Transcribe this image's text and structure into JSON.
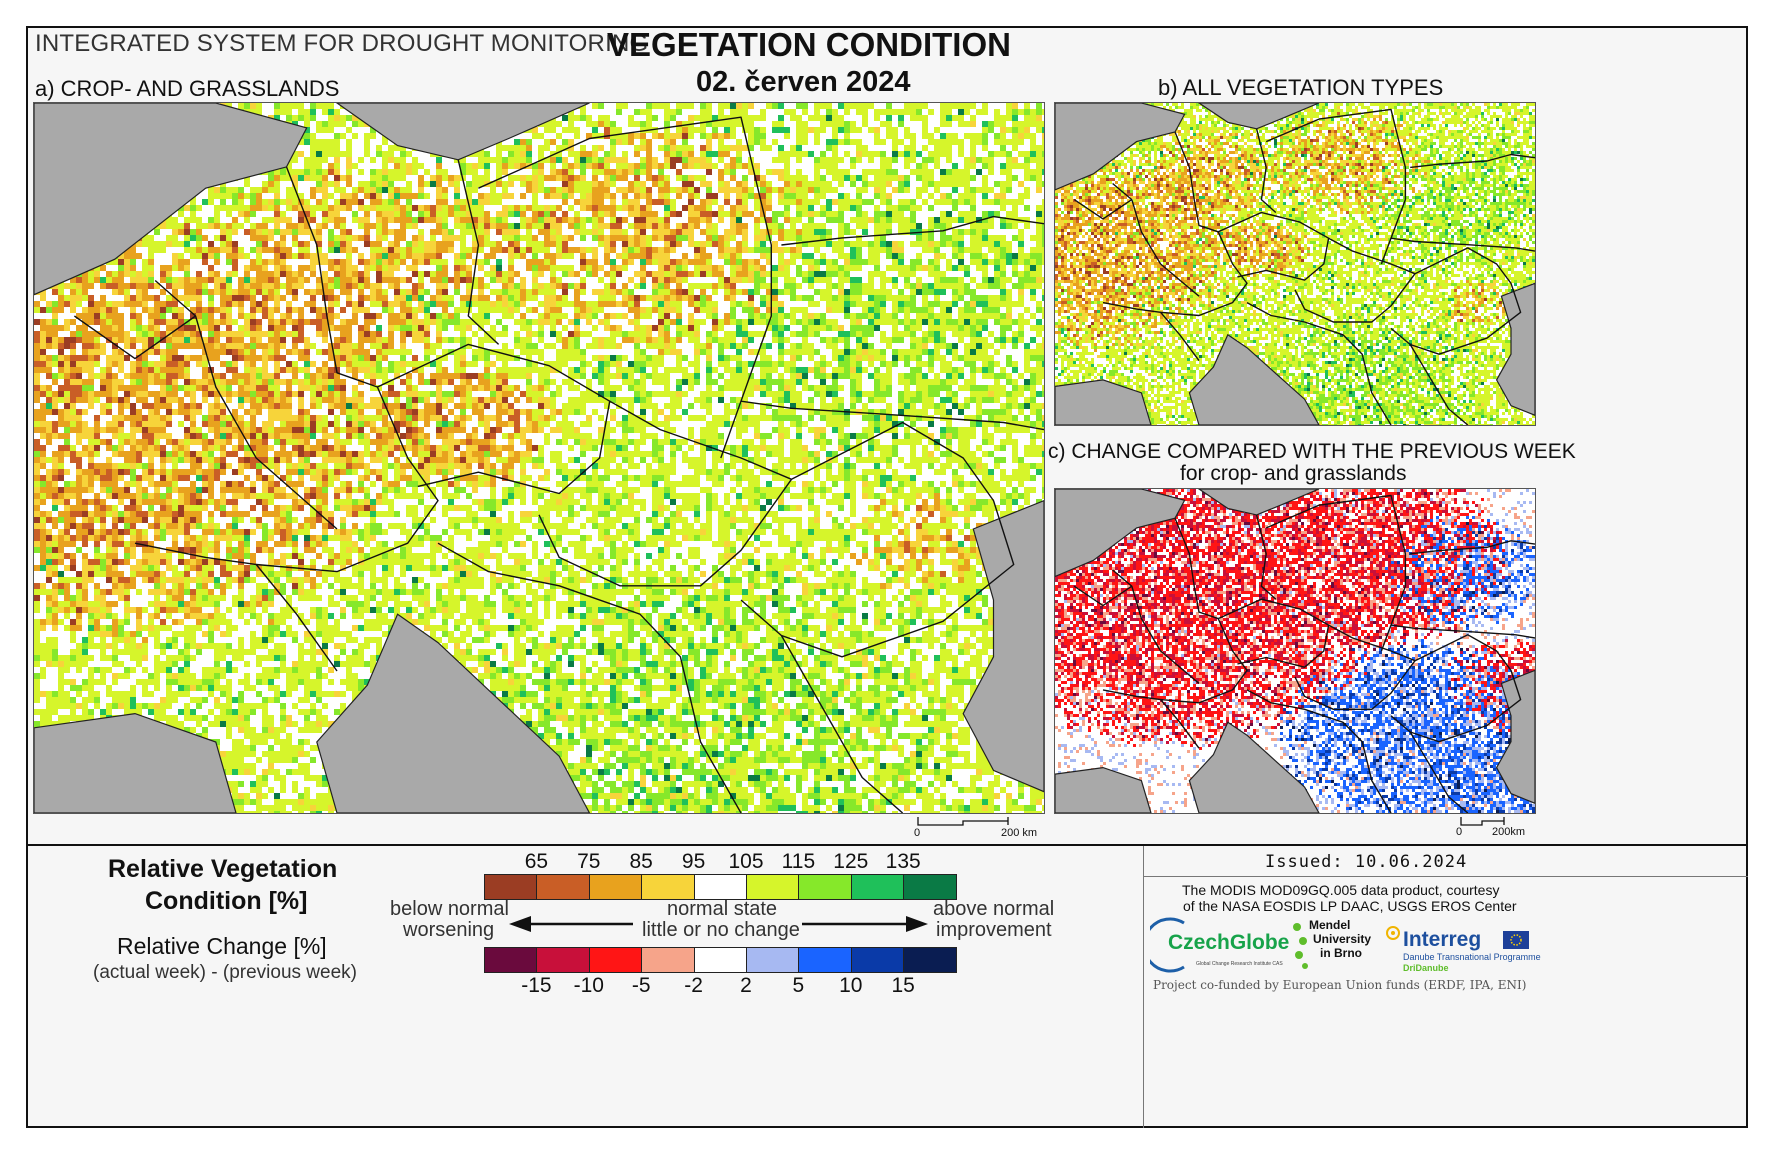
{
  "header": {
    "system_title": "INTEGRATED SYSTEM FOR DROUGHT MONITORING",
    "main_title": "VEGETATION CONDITION",
    "date": "02. červen 2024"
  },
  "panels": {
    "a": {
      "title": "a) CROP- AND GRASSLANDS",
      "scale_zero": "0",
      "scale_end": "200 km"
    },
    "b": {
      "title": "b) ALL VEGETATION TYPES"
    },
    "c": {
      "title": "c) CHANGE COMPARED WITH THE PREVIOUS WEEK",
      "subtitle": "for crop- and grasslands",
      "scale_zero": "0",
      "scale_end": "200km"
    }
  },
  "legend": {
    "rvc_title_line1": "Relative Vegetation",
    "rvc_title_line2": "Condition [%]",
    "rc_title": "Relative Change [%]",
    "rc_subtitle": "(actual week) - (previous week)",
    "rvc_ticks": [
      "65",
      "75",
      "85",
      "95",
      "105",
      "115",
      "125",
      "135"
    ],
    "rvc_colors": [
      "#9b3d23",
      "#c95e26",
      "#e8a21e",
      "#f7d43a",
      "#ffffff",
      "#d6f52b",
      "#86e82a",
      "#1fc05a",
      "#0a7a45"
    ],
    "rc_ticks": [
      "-15",
      "-10",
      "-5",
      "-2",
      "2",
      "5",
      "10",
      "15"
    ],
    "rc_colors": [
      "#6a0a3d",
      "#c8103a",
      "#ff1515",
      "#f6a48a",
      "#ffffff",
      "#a7b9f2",
      "#1a64ff",
      "#0a3aa8",
      "#0a1d52"
    ],
    "left_label_1": "below normal",
    "left_label_2": "worsening",
    "center_label_1": "normal state",
    "center_label_2": "little or no change",
    "right_label_1": "above normal",
    "right_label_2": "improvement"
  },
  "credits": {
    "issued": "Issued: 10.06.2024",
    "line1": "The MODIS MOD09GQ.005 data product, courtesy",
    "line2": "of the NASA EOSDIS LP DAAC, USGS EROS Center",
    "czechglobe": "CzechGlobe",
    "czechglobe_sub": "Global Change Research Institute CAS",
    "mendel_1": "Mendel",
    "mendel_2": "University",
    "mendel_3": "in Brno",
    "interreg": "Interreg",
    "interreg_sub": "Danube Transnational Programme",
    "dridanube": "DriDanube",
    "funding": "Project co-funded by European Union funds (ERDF, IPA, ENI)"
  },
  "colors": {
    "sea": "#a9a9a9",
    "border": "#111111",
    "no_data": "#b9b9b9"
  }
}
